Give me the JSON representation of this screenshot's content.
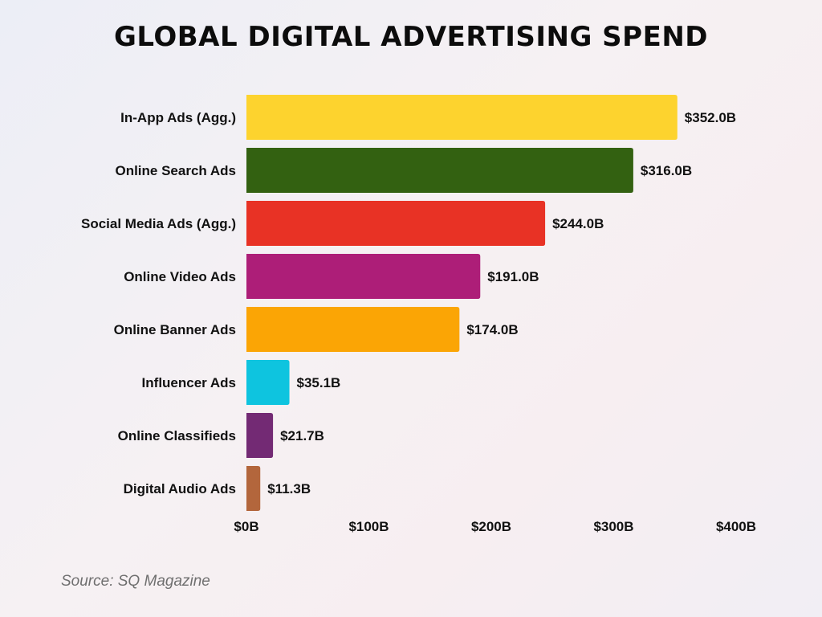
{
  "chart_data": {
    "type": "bar",
    "orientation": "horizontal",
    "title": "GLOBAL DIGITAL ADVERTISING SPEND",
    "categories": [
      "In-App Ads (Agg.)",
      "Online Search Ads",
      "Social Media Ads (Agg.)",
      "Online Video Ads",
      "Online Banner Ads",
      "Influencer Ads",
      "Online Classifieds",
      "Digital Audio Ads"
    ],
    "values": [
      352.0,
      316.0,
      244.0,
      191.0,
      174.0,
      35.1,
      21.7,
      11.3
    ],
    "value_labels": [
      "$352.0B",
      "$316.0B",
      "$244.0B",
      "$191.0B",
      "$174.0B",
      "$35.1B",
      "$21.7B",
      "$11.3B"
    ],
    "colors": [
      "#fdd32e",
      "#336111",
      "#e83225",
      "#ad1e78",
      "#fba505",
      "#0ec4df",
      "#732a74",
      "#b3663c"
    ],
    "xlim": [
      0,
      400
    ],
    "xticks": [
      0,
      100,
      200,
      300,
      400
    ],
    "xtick_labels": [
      "$0B",
      "$100B",
      "$200B",
      "$300B",
      "$400B"
    ],
    "xlabel": "",
    "ylabel": "",
    "grid": false
  },
  "source": "Source: SQ Magazine"
}
